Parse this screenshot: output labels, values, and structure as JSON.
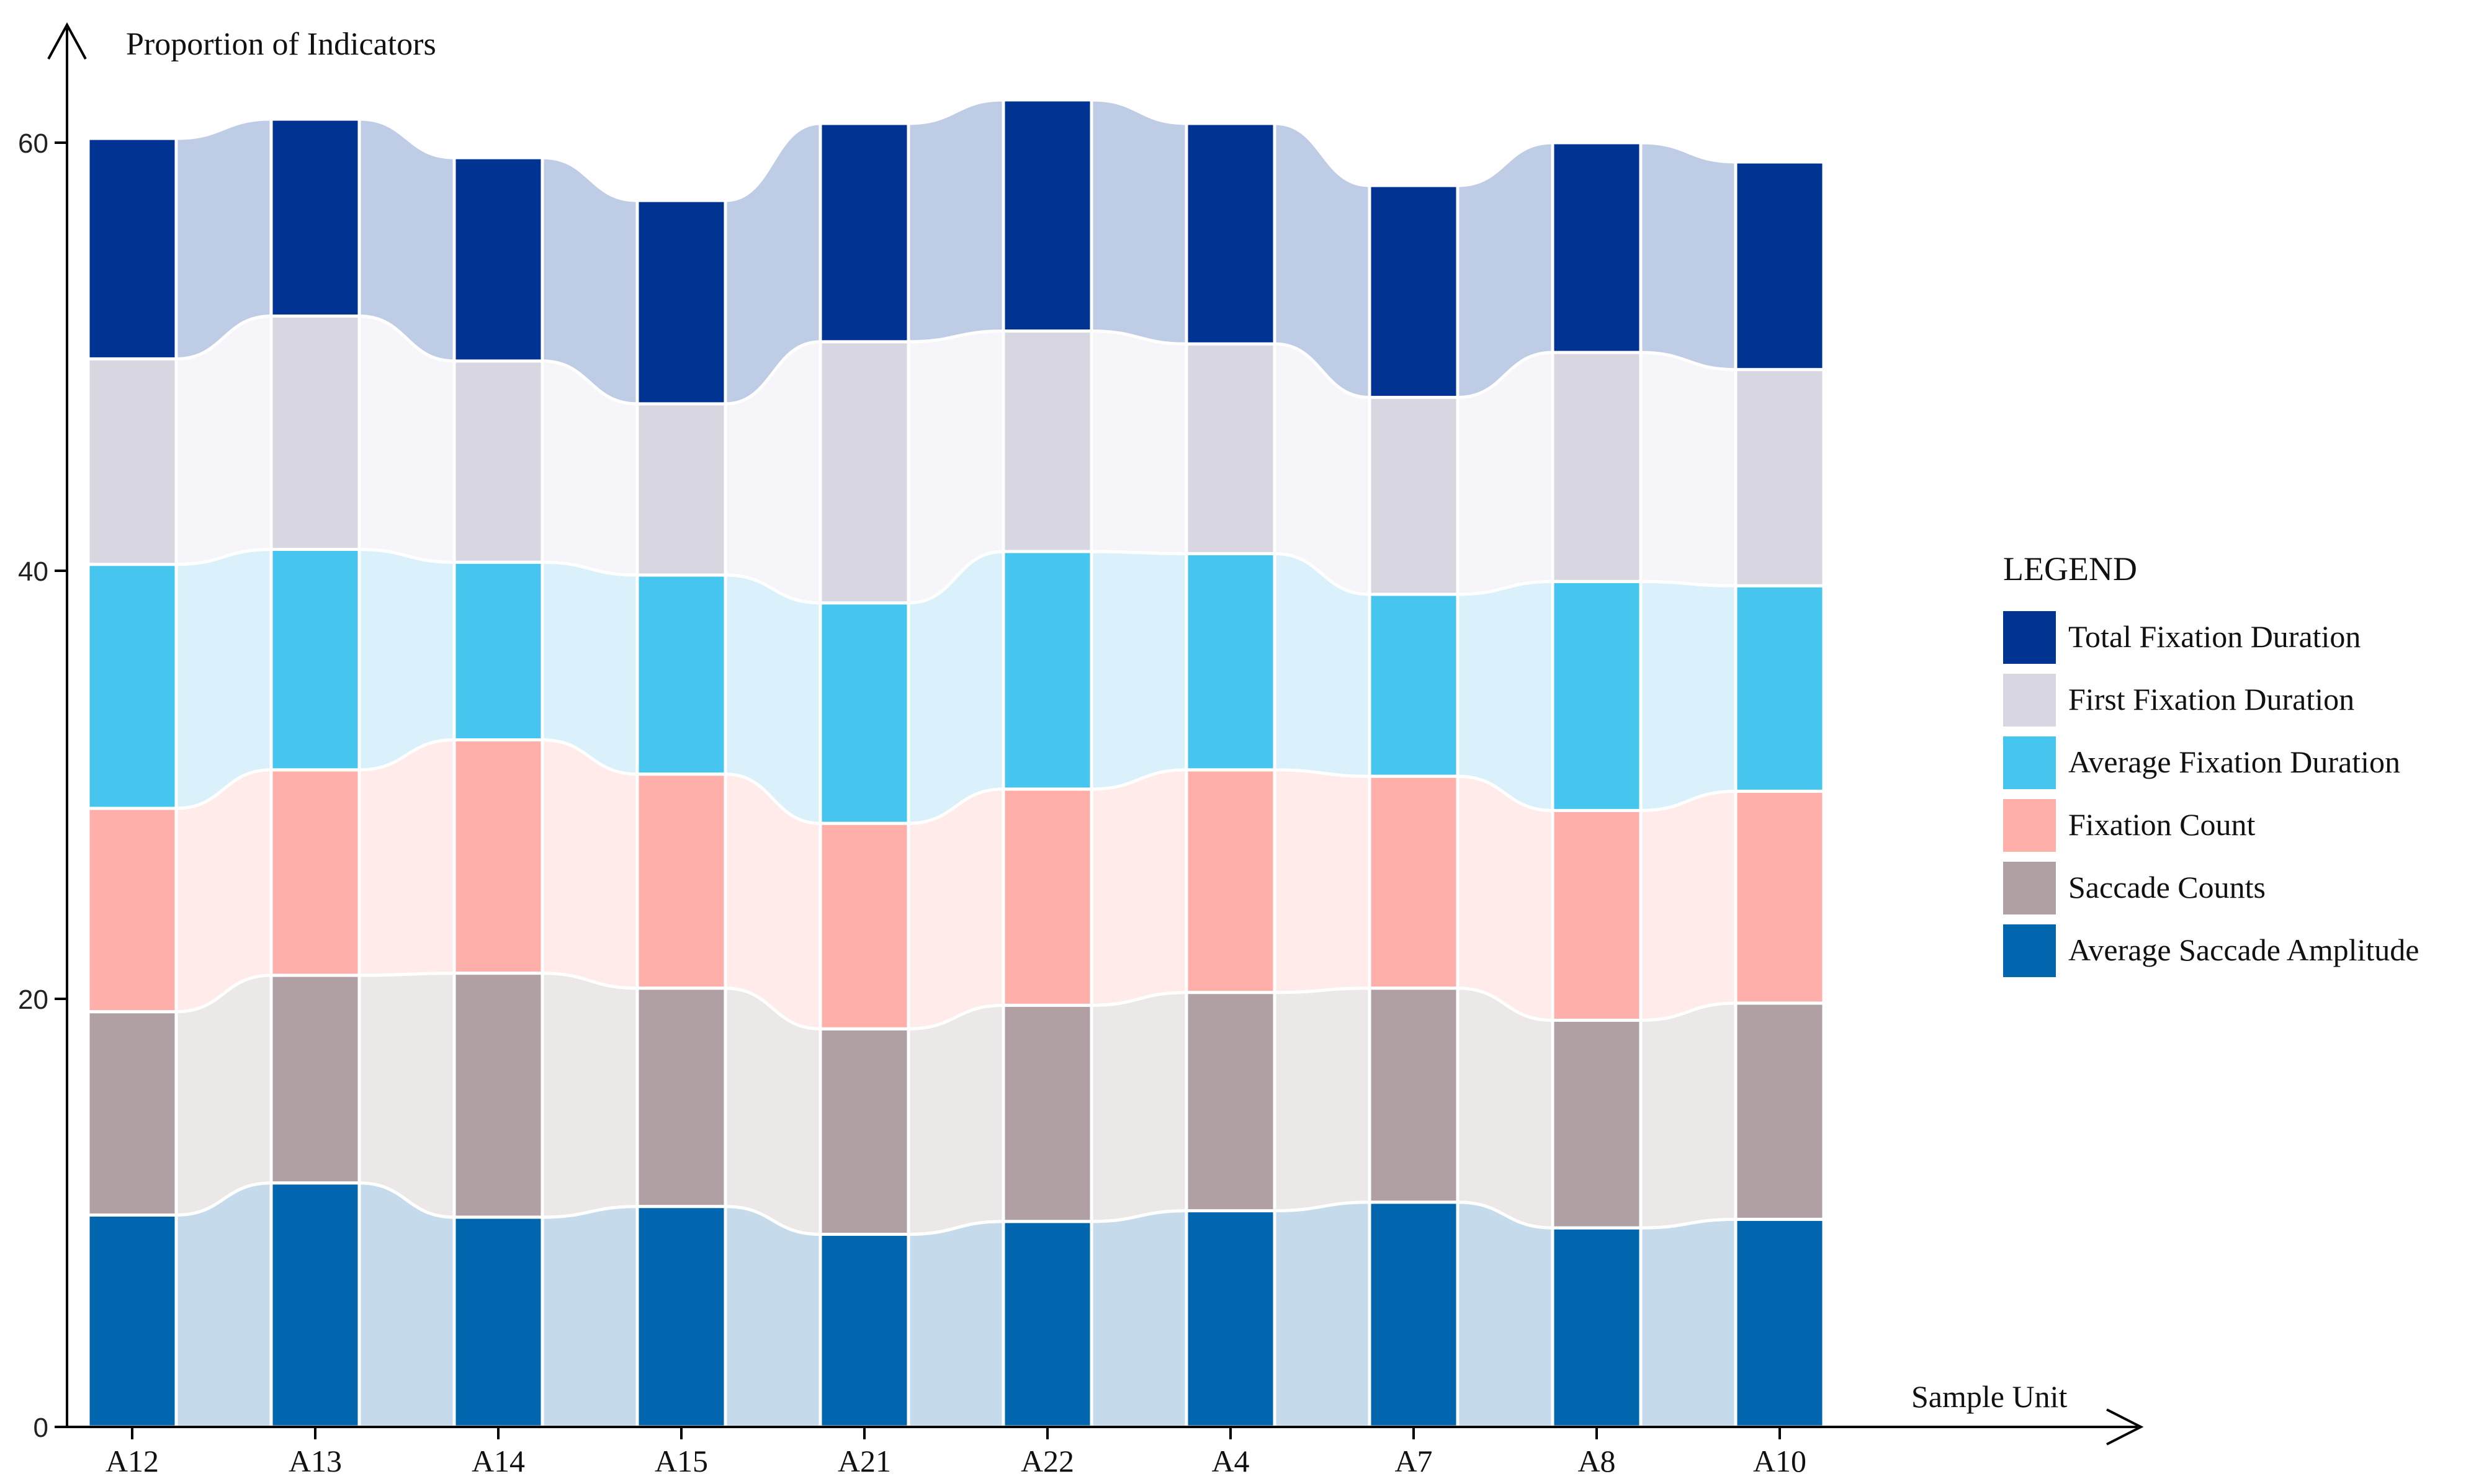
{
  "chart_data": {
    "type": "bar",
    "stacked": true,
    "title": "",
    "ylabel": "Proportion of Indicators",
    "xlabel": "Sample Unit",
    "ylim": [
      0,
      65
    ],
    "yticks": [
      0,
      20,
      40,
      60
    ],
    "categories": [
      "A12",
      "A13",
      "A14",
      "A15",
      "A21",
      "A22",
      "A4",
      "A7",
      "A8",
      "A10"
    ],
    "legend_title": "LEGEND",
    "legend_position": "right",
    "series": [
      {
        "name": "Average Saccade Amplitude",
        "color": "#0166AE",
        "flow_color": "#C5DBEB",
        "values": [
          9.9,
          11.4,
          9.8,
          10.3,
          9.0,
          9.6,
          10.1,
          10.5,
          9.3,
          9.7
        ]
      },
      {
        "name": "Saccade Counts",
        "color": "#B0A0A3",
        "flow_color": "#EDE8E8",
        "values": [
          9.5,
          9.7,
          11.4,
          10.2,
          9.6,
          10.1,
          10.2,
          10.0,
          9.7,
          10.1
        ]
      },
      {
        "name": "Fixation Count",
        "color": "#FFAFAA",
        "flow_color": "#FFEBEA",
        "values": [
          9.5,
          9.6,
          10.9,
          10.0,
          9.6,
          10.1,
          10.4,
          9.9,
          9.8,
          9.9
        ]
      },
      {
        "name": "Average Fixation Duration",
        "color": "#46C6EE",
        "flow_color": "#DAF1FB",
        "values": [
          11.4,
          10.3,
          8.3,
          9.3,
          10.3,
          11.1,
          10.1,
          8.5,
          10.7,
          9.6
        ]
      },
      {
        "name": "First Fixation Duration",
        "color": "#D8D6E1",
        "flow_color": "#F6F5F9",
        "values": [
          9.6,
          10.9,
          9.4,
          8.0,
          12.2,
          10.3,
          9.8,
          9.2,
          10.7,
          10.1
        ]
      },
      {
        "name": "Total Fixation Duration",
        "color": "#013393",
        "flow_color": "#BFCCE5",
        "values": [
          10.3,
          9.2,
          9.5,
          9.5,
          10.2,
          10.8,
          10.3,
          9.9,
          9.8,
          9.7
        ]
      }
    ]
  }
}
